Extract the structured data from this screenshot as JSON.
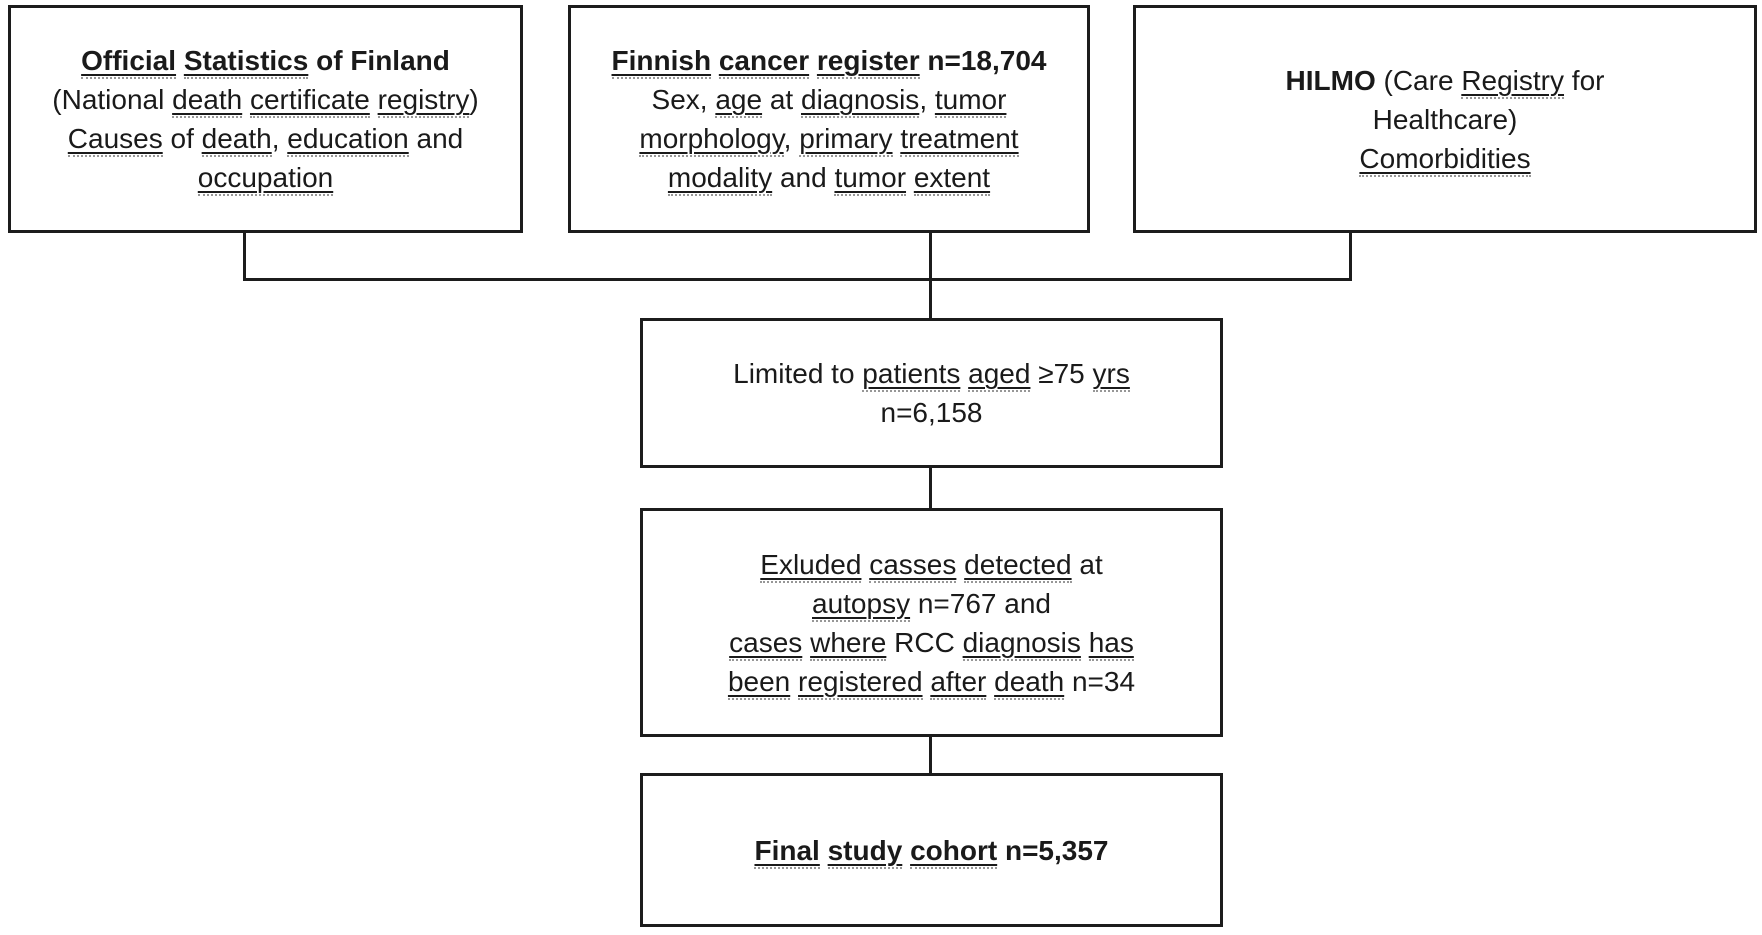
{
  "colors": {
    "ink": "#1a1a1a",
    "border": "#1c1c1c",
    "background": "#ffffff",
    "squiggle": "#979797"
  },
  "boxes": [
    {
      "id": "official-statistics",
      "lines": [
        {
          "segments": [
            {
              "t": "Official",
              "u": true,
              "b": true
            },
            {
              "t": " ",
              "u": false,
              "b": true
            },
            {
              "t": "Statistics",
              "u": true,
              "b": true
            },
            {
              "t": " of Finland",
              "u": false,
              "b": true
            }
          ]
        },
        {
          "segments": [
            {
              "t": "(National ",
              "u": false
            },
            {
              "t": "death",
              "u": true
            },
            {
              "t": " ",
              "u": false
            },
            {
              "t": "certificate",
              "u": true
            },
            {
              "t": " ",
              "u": false
            },
            {
              "t": "registry",
              "u": true
            },
            {
              "t": ")",
              "u": false
            }
          ]
        },
        {
          "segments": [
            {
              "t": "Causes",
              "u": true
            },
            {
              "t": " of ",
              "u": false
            },
            {
              "t": "death",
              "u": true
            },
            {
              "t": ", ",
              "u": false
            },
            {
              "t": "education",
              "u": true
            },
            {
              "t": " and",
              "u": false
            }
          ]
        },
        {
          "segments": [
            {
              "t": "occupation",
              "u": true
            }
          ]
        }
      ]
    },
    {
      "id": "finnish-cancer-register",
      "lines": [
        {
          "segments": [
            {
              "t": "Finnish",
              "u": true,
              "b": true
            },
            {
              "t": " ",
              "u": false,
              "b": true
            },
            {
              "t": "cancer",
              "u": true,
              "b": true
            },
            {
              "t": " ",
              "u": false,
              "b": true
            },
            {
              "t": "register",
              "u": true,
              "b": true
            },
            {
              "t": " n=18,704",
              "u": false,
              "b": true
            }
          ]
        },
        {
          "segments": [
            {
              "t": "Sex, ",
              "u": false
            },
            {
              "t": "age",
              "u": true
            },
            {
              "t": " at ",
              "u": false
            },
            {
              "t": "diagnosis",
              "u": true
            },
            {
              "t": ", ",
              "u": false
            },
            {
              "t": "tumor",
              "u": true
            }
          ]
        },
        {
          "segments": [
            {
              "t": "morphology",
              "u": true
            },
            {
              "t": ", ",
              "u": false
            },
            {
              "t": "primary",
              "u": true
            },
            {
              "t": " ",
              "u": false
            },
            {
              "t": "treatment",
              "u": true
            }
          ]
        },
        {
          "segments": [
            {
              "t": "modality",
              "u": true
            },
            {
              "t": " and ",
              "u": false
            },
            {
              "t": "tumor",
              "u": true
            },
            {
              "t": " ",
              "u": false
            },
            {
              "t": "extent",
              "u": true
            }
          ]
        }
      ]
    },
    {
      "id": "hilmo",
      "lines": [
        {
          "segments": [
            {
              "t": "HILMO",
              "u": false,
              "b": true
            },
            {
              "t": " (Care ",
              "u": false
            },
            {
              "t": "Registry",
              "u": true
            },
            {
              "t": " for",
              "u": false
            }
          ]
        },
        {
          "segments": [
            {
              "t": "Healthcare)",
              "u": false
            }
          ]
        },
        {
          "segments": [
            {
              "t": "Comorbidities",
              "u": true
            }
          ]
        }
      ]
    },
    {
      "id": "limited-to-aged-75",
      "lines": [
        {
          "segments": [
            {
              "t": "Limited to ",
              "u": false
            },
            {
              "t": "patients",
              "u": true
            },
            {
              "t": " ",
              "u": false
            },
            {
              "t": "aged",
              "u": true
            },
            {
              "t": " ≥75 ",
              "u": false
            },
            {
              "t": "yrs",
              "u": true
            }
          ]
        },
        {
          "segments": [
            {
              "t": "n=6,158",
              "u": false
            }
          ]
        }
      ]
    },
    {
      "id": "excluded-cases",
      "lines": [
        {
          "segments": [
            {
              "t": "Exluded",
              "u": true
            },
            {
              "t": " ",
              "u": false
            },
            {
              "t": "casses",
              "u": true
            },
            {
              "t": " ",
              "u": false
            },
            {
              "t": "detected",
              "u": true
            },
            {
              "t": " at",
              "u": false
            }
          ]
        },
        {
          "segments": [
            {
              "t": "autopsy",
              "u": true
            },
            {
              "t": " n=767 and",
              "u": false
            }
          ]
        },
        {
          "segments": [
            {
              "t": "cases",
              "u": true
            },
            {
              "t": " ",
              "u": false
            },
            {
              "t": "where",
              "u": true
            },
            {
              "t": " RCC ",
              "u": false
            },
            {
              "t": "diagnosis",
              "u": true
            },
            {
              "t": " ",
              "u": false
            },
            {
              "t": "has",
              "u": true
            }
          ]
        },
        {
          "segments": [
            {
              "t": "been",
              "u": true
            },
            {
              "t": " ",
              "u": false
            },
            {
              "t": "registered",
              "u": true
            },
            {
              "t": " ",
              "u": false
            },
            {
              "t": "after",
              "u": true
            },
            {
              "t": " ",
              "u": false
            },
            {
              "t": "death",
              "u": true
            },
            {
              "t": " n=34",
              "u": false
            }
          ]
        }
      ]
    },
    {
      "id": "final-study-cohort",
      "lines": [
        {
          "segments": [
            {
              "t": "Final",
              "u": true,
              "b": true
            },
            {
              "t": " ",
              "u": false,
              "b": true
            },
            {
              "t": "study",
              "u": true,
              "b": true
            },
            {
              "t": " ",
              "u": false,
              "b": true
            },
            {
              "t": "cohort",
              "u": true,
              "b": true
            },
            {
              "t": " n=5,357",
              "u": false,
              "b": true
            }
          ]
        }
      ]
    }
  ]
}
